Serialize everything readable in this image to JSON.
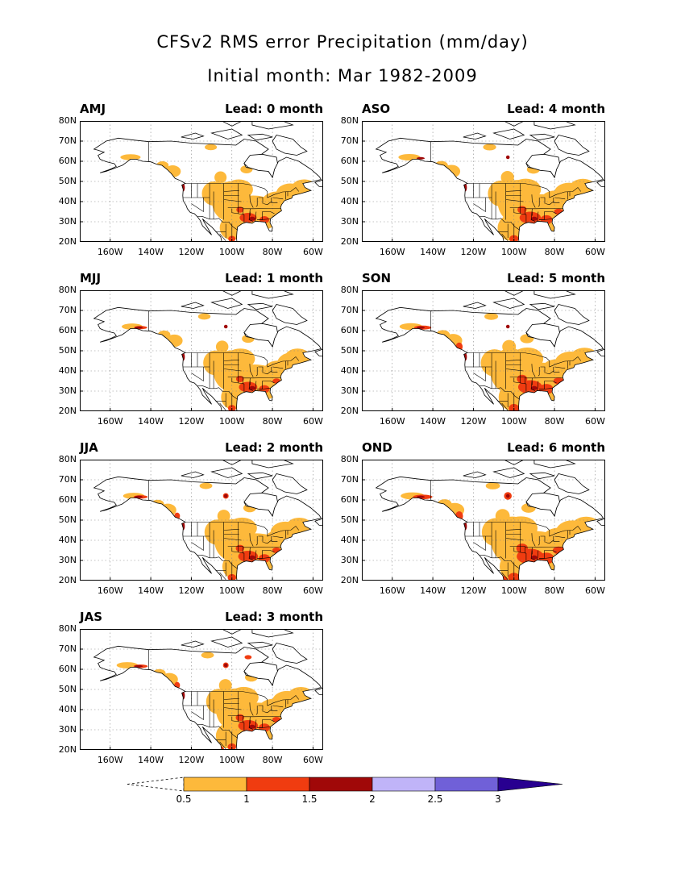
{
  "title": {
    "line1": "CFSv2 RMS error Precipitation (mm/day)",
    "line2": "Initial month: Mar 1982-2009"
  },
  "lat_ticks": [
    "80N",
    "70N",
    "60N",
    "50N",
    "40N",
    "30N",
    "20N"
  ],
  "lon_ticks": [
    "160W",
    "140W",
    "120W",
    "100W",
    "80W",
    "60W"
  ],
  "panels": [
    {
      "season": "AMJ",
      "lead": "Lead: 0 month",
      "intensity": 0.6
    },
    {
      "season": "ASO",
      "lead": "Lead: 4 month",
      "intensity": 0.75
    },
    {
      "season": "MJJ",
      "lead": "Lead: 1 month",
      "intensity": 0.65
    },
    {
      "season": "SON",
      "lead": "Lead: 5 month",
      "intensity": 0.85
    },
    {
      "season": "JJA",
      "lead": "Lead: 2 month",
      "intensity": 0.7
    },
    {
      "season": "OND",
      "lead": "Lead: 6 month",
      "intensity": 0.95
    },
    {
      "season": "JAS",
      "lead": "Lead: 3 month",
      "intensity": 0.7
    }
  ],
  "colorbar": {
    "labels": [
      "0.5",
      "1",
      "1.5",
      "2",
      "2.5",
      "3"
    ],
    "colors": [
      "#ffffff",
      "#fdb93b",
      "#f03c10",
      "#a00808",
      "#c0b4f8",
      "#7060d8",
      "#280090"
    ]
  },
  "colors": {
    "land_outline": "#000000",
    "grid": "#888888",
    "level1": "#fdb93b",
    "level2": "#f03c10",
    "level3": "#a00808",
    "level4": "#7060d8"
  }
}
